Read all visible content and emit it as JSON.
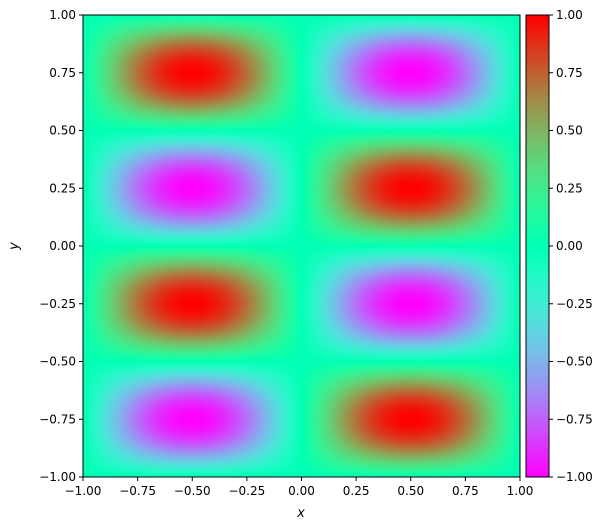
{
  "chart_data": {
    "type": "heatmap",
    "function": "sin(pi*x) * sin(2*pi*y)",
    "xlabel": "x",
    "ylabel": "y",
    "xlim": [
      -1.0,
      1.0
    ],
    "ylim": [
      -1.0,
      1.0
    ],
    "x_ticks": [
      -1.0,
      -0.75,
      -0.5,
      -0.25,
      0.0,
      0.25,
      0.5,
      0.75,
      1.0
    ],
    "x_tick_labels": [
      "−1.00",
      "−0.75",
      "−0.50",
      "−0.25",
      "0.00",
      "0.25",
      "0.50",
      "0.75",
      "1.00"
    ],
    "y_ticks": [
      -1.0,
      -0.75,
      -0.5,
      -0.25,
      0.0,
      0.25,
      0.5,
      0.75,
      1.0
    ],
    "y_tick_labels": [
      "−1.00",
      "−0.75",
      "−0.50",
      "−0.25",
      "0.00",
      "0.25",
      "0.50",
      "0.75",
      "1.00"
    ],
    "colormap": "rainbow",
    "colorbar": {
      "range": [
        -1.0,
        1.0
      ],
      "ticks": [
        -1.0,
        -0.75,
        -0.5,
        -0.25,
        0.0,
        0.25,
        0.5,
        0.75,
        1.0
      ],
      "tick_labels": [
        "−1.00",
        "−0.75",
        "−0.50",
        "−0.25",
        "0.00",
        "0.25",
        "0.50",
        "0.75",
        "1.00"
      ],
      "placement": "right"
    },
    "extrema": [
      {
        "x": -0.5,
        "y": 0.75,
        "value": 1.0
      },
      {
        "x": 0.5,
        "y": 0.75,
        "value": -1.0
      },
      {
        "x": -0.5,
        "y": 0.25,
        "value": -1.0
      },
      {
        "x": 0.5,
        "y": 0.25,
        "value": 1.0
      },
      {
        "x": -0.5,
        "y": -0.25,
        "value": 1.0
      },
      {
        "x": 0.5,
        "y": -0.25,
        "value": -1.0
      },
      {
        "x": -0.5,
        "y": -0.75,
        "value": -1.0
      },
      {
        "x": 0.5,
        "y": -0.75,
        "value": 1.0
      }
    ],
    "grid": false
  }
}
